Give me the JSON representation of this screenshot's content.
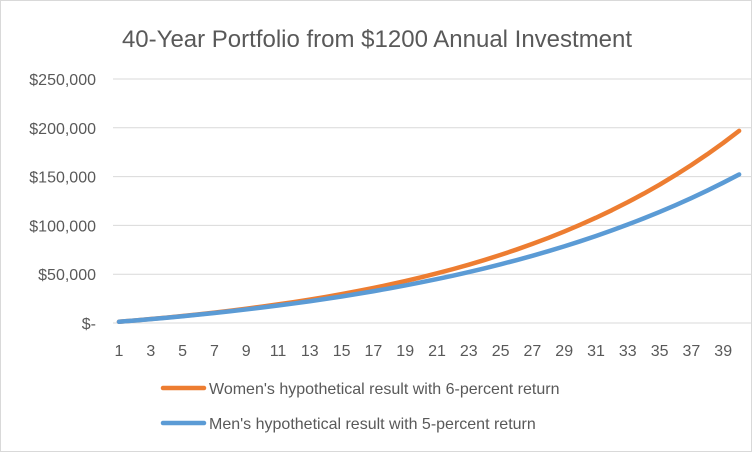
{
  "chart_data": {
    "type": "line",
    "title": "40-Year Portfolio from $1200 Annual Investment",
    "xlabel": "",
    "ylabel": "",
    "x": [
      1,
      2,
      3,
      4,
      5,
      6,
      7,
      8,
      9,
      10,
      11,
      12,
      13,
      14,
      15,
      16,
      17,
      18,
      19,
      20,
      21,
      22,
      23,
      24,
      25,
      26,
      27,
      28,
      29,
      30,
      31,
      32,
      33,
      34,
      35,
      36,
      37,
      38,
      39,
      40
    ],
    "x_tick_labels": [
      "1",
      "3",
      "5",
      "7",
      "9",
      "11",
      "13",
      "15",
      "17",
      "19",
      "21",
      "23",
      "25",
      "27",
      "29",
      "31",
      "33",
      "35",
      "37",
      "39"
    ],
    "y_tick_labels": [
      "$-",
      "$50,000",
      "$100,000",
      "$150,000",
      "$200,000",
      "$250,000"
    ],
    "ylim": [
      0,
      250000
    ],
    "grid": true,
    "legend_position": "bottom",
    "series": [
      {
        "name": "Women's hypothetical result with 6-percent return",
        "color": "#ED7D31",
        "values": [
          1272,
          2620,
          4050,
          5565,
          7170,
          8873,
          10677,
          12590,
          14617,
          16766,
          19044,
          21459,
          24018,
          26731,
          29607,
          32655,
          35887,
          39312,
          42943,
          46791,
          50871,
          55195,
          59779,
          64637,
          69788,
          75247,
          81034,
          87168,
          93670,
          100562,
          107868,
          115612,
          123821,
          132522,
          141745,
          151522,
          161885,
          172870,
          184514,
          196857
        ]
      },
      {
        "name": "Men's hypothetical result with 5-percent return",
        "color": "#5B9BD5",
        "values": [
          1260,
          2583,
          3972,
          5431,
          6962,
          8570,
          10259,
          12032,
          13893,
          15848,
          17901,
          20056,
          22318,
          24694,
          27189,
          29808,
          32559,
          35447,
          38479,
          41663,
          45006,
          48517,
          52202,
          56073,
          60136,
          64403,
          68883,
          73587,
          78527,
          83713,
          89159,
          94877,
          100880,
          107184,
          113804,
          120754,
          128051,
          135714,
          143760,
          152208
        ]
      }
    ]
  }
}
